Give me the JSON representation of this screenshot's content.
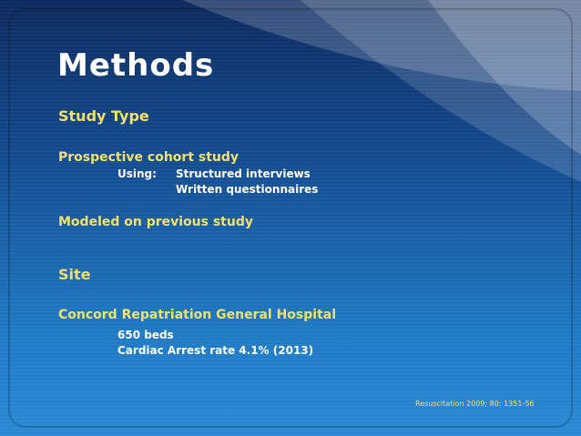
{
  "title": "Methods",
  "sections": [
    {
      "heading": "Study Type",
      "items": [
        {
          "text": "Prospective cohort study",
          "sub_label": "Using:",
          "sub_items": [
            "Structured interviews",
            "Written questionnaires"
          ]
        },
        {
          "text": "Modeled on previous study"
        }
      ]
    },
    {
      "heading": "Site",
      "items": [
        {
          "text": "Concord Repatriation General Hospital",
          "sub_items": [
            "650 beds",
            "Cardiac Arrest rate 4.1% (2013)"
          ]
        }
      ]
    }
  ],
  "reference": "Resuscitation 2009; 80: 1351-56"
}
